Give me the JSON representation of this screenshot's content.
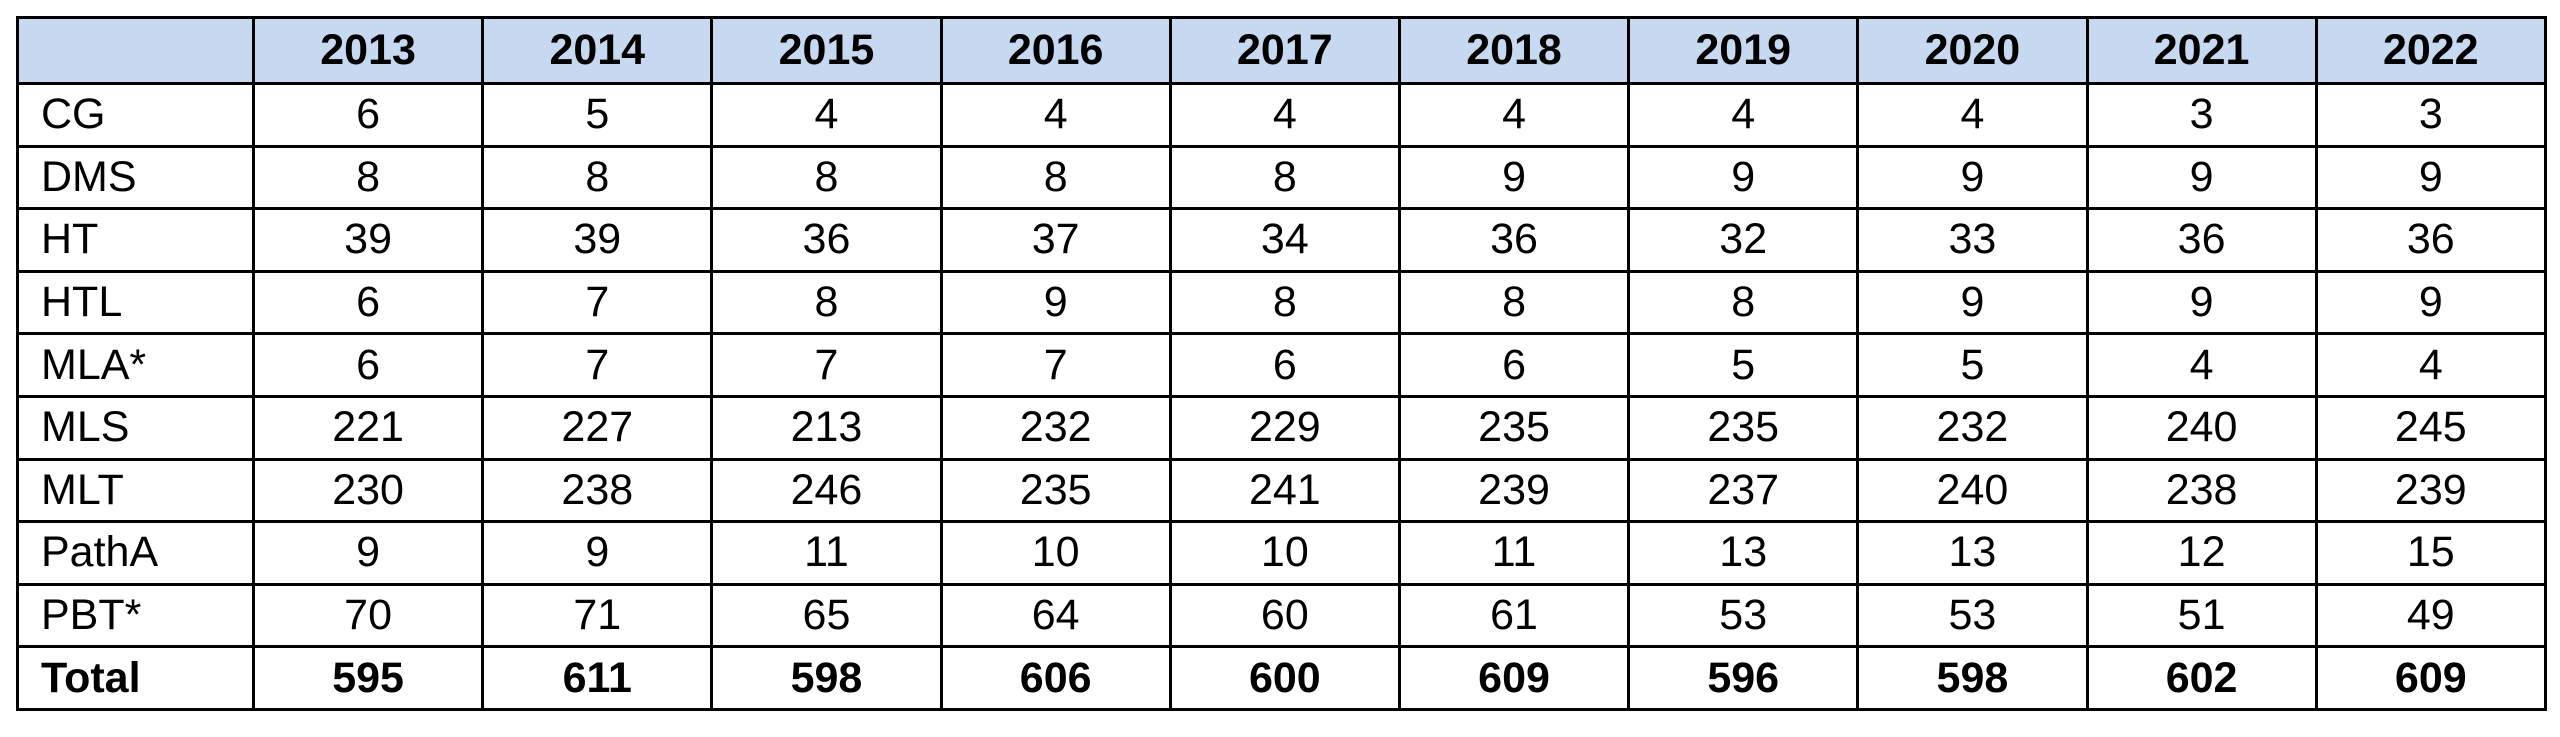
{
  "chart_data": {
    "type": "table",
    "columns": [
      "2013",
      "2014",
      "2015",
      "2016",
      "2017",
      "2018",
      "2019",
      "2020",
      "2021",
      "2022"
    ],
    "rows": [
      {
        "label": "CG",
        "values": [
          6,
          5,
          4,
          4,
          4,
          4,
          4,
          4,
          3,
          3
        ]
      },
      {
        "label": "DMS",
        "values": [
          8,
          8,
          8,
          8,
          8,
          9,
          9,
          9,
          9,
          9
        ]
      },
      {
        "label": "HT",
        "values": [
          39,
          39,
          36,
          37,
          34,
          36,
          32,
          33,
          36,
          36
        ]
      },
      {
        "label": "HTL",
        "values": [
          6,
          7,
          8,
          9,
          8,
          8,
          8,
          9,
          9,
          9
        ]
      },
      {
        "label": "MLA*",
        "values": [
          6,
          7,
          7,
          7,
          6,
          6,
          5,
          5,
          4,
          4
        ]
      },
      {
        "label": "MLS",
        "values": [
          221,
          227,
          213,
          232,
          229,
          235,
          235,
          232,
          240,
          245
        ]
      },
      {
        "label": "MLT",
        "values": [
          230,
          238,
          246,
          235,
          241,
          239,
          237,
          240,
          238,
          239
        ]
      },
      {
        "label": "PathA",
        "values": [
          9,
          9,
          11,
          10,
          10,
          11,
          13,
          13,
          12,
          15
        ]
      },
      {
        "label": "PBT*",
        "values": [
          70,
          71,
          65,
          64,
          60,
          61,
          53,
          53,
          51,
          49
        ]
      }
    ],
    "total": {
      "label": "Total",
      "values": [
        595,
        611,
        598,
        606,
        600,
        609,
        596,
        598,
        602,
        609
      ]
    },
    "header_color": "#c6d9f1"
  }
}
